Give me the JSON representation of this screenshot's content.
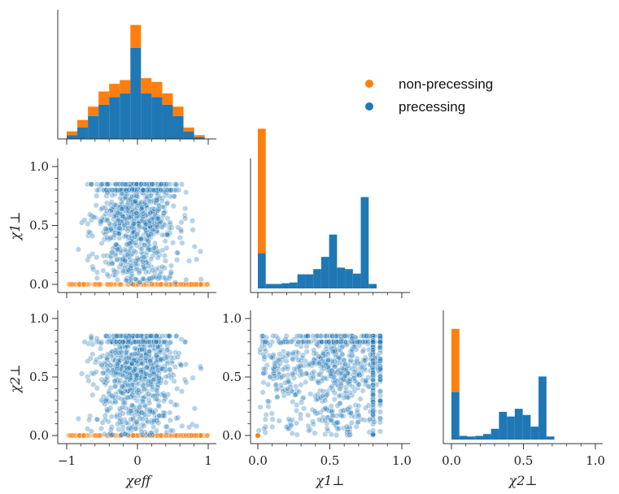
{
  "colors": {
    "precessing": "#1f77b4",
    "non_precessing": "#ff7f0e",
    "axis": "#333333"
  },
  "chart_data": {
    "type": "scatter",
    "title": "",
    "legend": {
      "placement": "top-right",
      "entries": [
        "non-precessing",
        "precessing"
      ]
    },
    "axes": {
      "chi_eff": {
        "label": "χeff",
        "range": [
          -1.1,
          1.05
        ],
        "ticks": [
          -1,
          0,
          1
        ],
        "tick_labels": [
          "−1",
          "0",
          "1"
        ]
      },
      "chi_1perp": {
        "label": "χ1⊥",
        "range": [
          -0.05,
          1.05
        ],
        "ticks": [
          0.0,
          0.5,
          1.0
        ],
        "tick_labels": [
          "0.0",
          "0.5",
          "1.0"
        ]
      },
      "chi_2perp": {
        "label": "χ2⊥",
        "range": [
          -0.05,
          1.05
        ],
        "ticks": [
          0.0,
          0.5,
          1.0
        ],
        "tick_labels": [
          "0.0",
          "0.5",
          "1.0"
        ]
      }
    },
    "histograms": {
      "chi_eff": {
        "bin_edges": [
          -1.0,
          -0.85,
          -0.7,
          -0.55,
          -0.4,
          -0.25,
          -0.1,
          0.05,
          0.2,
          0.35,
          0.5,
          0.65,
          0.8,
          0.95
        ],
        "precessing": [
          2,
          6,
          12,
          18,
          22,
          24,
          48,
          24,
          22,
          18,
          12,
          4,
          1
        ],
        "non_precessing": [
          2,
          4,
          5,
          7,
          7,
          7,
          12,
          8,
          8,
          6,
          5,
          2,
          1
        ]
      },
      "chi_1perp": {
        "bin_edges": [
          0.0,
          0.055,
          0.11,
          0.165,
          0.22,
          0.275,
          0.33,
          0.385,
          0.44,
          0.495,
          0.55,
          0.605,
          0.66,
          0.715,
          0.77,
          0.825,
          0.88
        ],
        "precessing": [
          95,
          12,
          12,
          14,
          16,
          38,
          38,
          52,
          85,
          145,
          56,
          52,
          40,
          246,
          12,
          0
        ],
        "non_precessing": [
          335,
          0,
          0,
          0,
          0,
          0,
          0,
          0,
          0,
          0,
          0,
          0,
          0,
          0,
          0,
          0
        ]
      },
      "chi_2perp": {
        "bin_edges": [
          0.0,
          0.055,
          0.11,
          0.165,
          0.22,
          0.275,
          0.33,
          0.385,
          0.44,
          0.495,
          0.55,
          0.605,
          0.66,
          0.715,
          0.77,
          0.825,
          0.88
        ],
        "precessing": [
          155,
          12,
          10,
          12,
          18,
          35,
          90,
          75,
          100,
          80,
          42,
          205,
          10,
          0,
          0,
          0
        ],
        "non_precessing": [
          205,
          0,
          0,
          0,
          0,
          0,
          0,
          0,
          0,
          0,
          0,
          0,
          0,
          0,
          0,
          0
        ]
      }
    },
    "scatter": {
      "n_precessing": 900,
      "n_non_precessing": 100,
      "note": "precessing points: chi_eff in ~[-0.9,0.9], chi_perp in ~[0,0.9] with clusters near 0.57 and 0.8; non-precessing points lie at chi_perp = 0"
    }
  }
}
